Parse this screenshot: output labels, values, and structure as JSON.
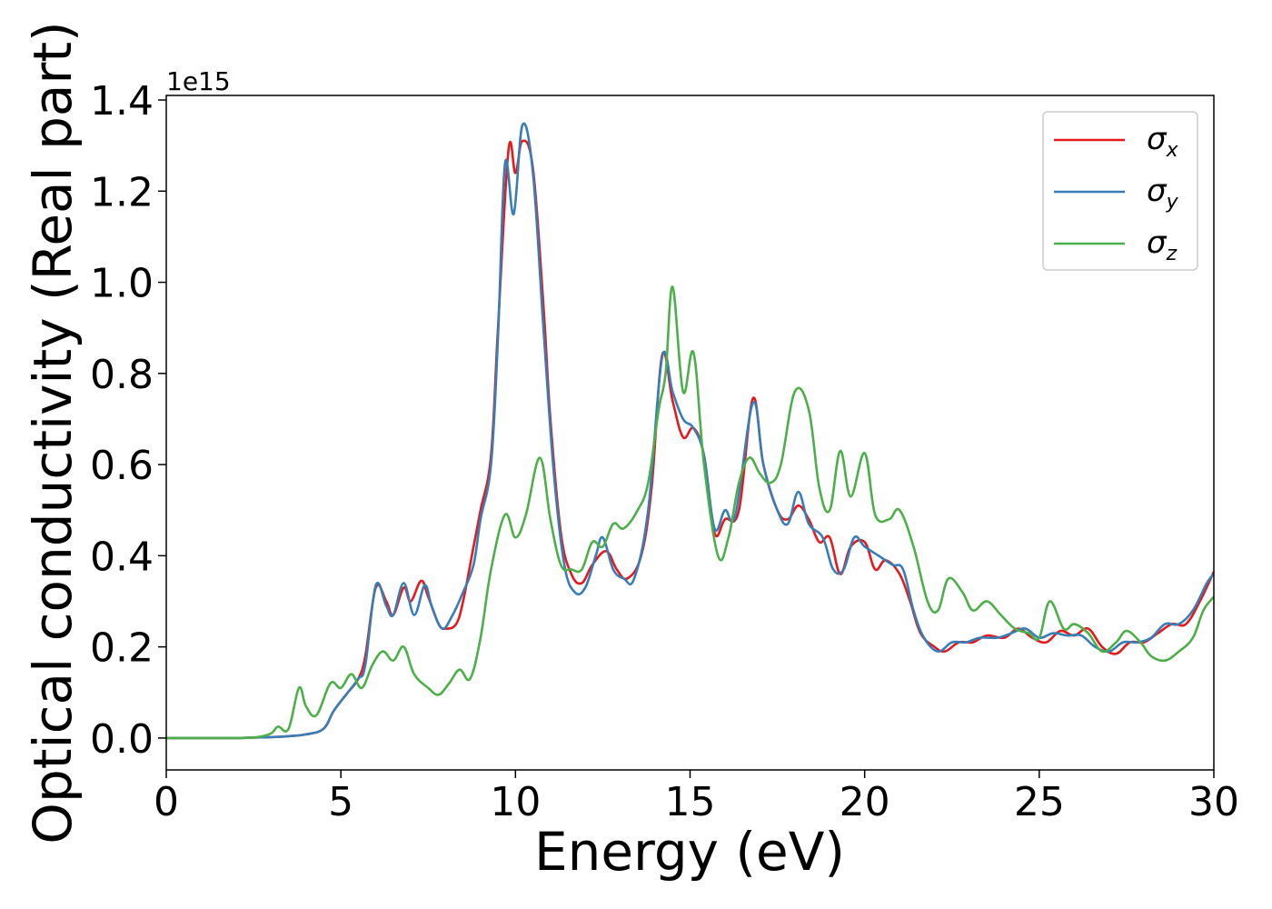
{
  "chart_data": {
    "type": "line",
    "xlabel": "Energy (eV)",
    "ylabel": "Optical conductivity (Real part)",
    "y_offset_label": "1e15",
    "xlim": [
      0,
      30
    ],
    "ylim": [
      -0.07,
      1.41
    ],
    "x_ticks": [
      0,
      5,
      10,
      15,
      20,
      25,
      30
    ],
    "y_ticks": [
      0.0,
      0.2,
      0.4,
      0.6,
      0.8,
      1.0,
      1.2,
      1.4
    ],
    "x_tick_labels": [
      "0",
      "5",
      "10",
      "15",
      "20",
      "25",
      "30"
    ],
    "y_tick_labels": [
      "0.0",
      "0.2",
      "0.4",
      "0.6",
      "0.8",
      "1.0",
      "1.2",
      "1.4"
    ],
    "grid": false,
    "legend_position": "top-right",
    "series": [
      {
        "name": "σx",
        "symbol": "σ",
        "sub": "x",
        "color": "#e41a1c",
        "points": [
          [
            0,
            0
          ],
          [
            1,
            0
          ],
          [
            2,
            0
          ],
          [
            2.5,
            0.001
          ],
          [
            3,
            0.002
          ],
          [
            3.5,
            0.004
          ],
          [
            4,
            0.008
          ],
          [
            4.5,
            0.02
          ],
          [
            4.8,
            0.06
          ],
          [
            5.2,
            0.1
          ],
          [
            5.5,
            0.13
          ],
          [
            5.7,
            0.18
          ],
          [
            6.0,
            0.33
          ],
          [
            6.3,
            0.3
          ],
          [
            6.5,
            0.27
          ],
          [
            6.8,
            0.33
          ],
          [
            7.0,
            0.3
          ],
          [
            7.3,
            0.345
          ],
          [
            7.5,
            0.31
          ],
          [
            7.8,
            0.25
          ],
          [
            8.0,
            0.24
          ],
          [
            8.3,
            0.25
          ],
          [
            8.5,
            0.3
          ],
          [
            8.8,
            0.42
          ],
          [
            9.0,
            0.5
          ],
          [
            9.3,
            0.62
          ],
          [
            9.5,
            0.9
          ],
          [
            9.8,
            1.29
          ],
          [
            10.0,
            1.24
          ],
          [
            10.2,
            1.31
          ],
          [
            10.5,
            1.25
          ],
          [
            10.8,
            0.95
          ],
          [
            11.0,
            0.7
          ],
          [
            11.3,
            0.45
          ],
          [
            11.6,
            0.36
          ],
          [
            11.9,
            0.34
          ],
          [
            12.2,
            0.38
          ],
          [
            12.6,
            0.41
          ],
          [
            12.9,
            0.37
          ],
          [
            13.2,
            0.35
          ],
          [
            13.6,
            0.4
          ],
          [
            13.9,
            0.55
          ],
          [
            14.2,
            0.84
          ],
          [
            14.5,
            0.74
          ],
          [
            14.8,
            0.66
          ],
          [
            15.1,
            0.68
          ],
          [
            15.4,
            0.62
          ],
          [
            15.7,
            0.45
          ],
          [
            16.0,
            0.48
          ],
          [
            16.4,
            0.5
          ],
          [
            16.8,
            0.745
          ],
          [
            17.1,
            0.6
          ],
          [
            17.5,
            0.5
          ],
          [
            17.8,
            0.48
          ],
          [
            18.1,
            0.51
          ],
          [
            18.4,
            0.48
          ],
          [
            18.7,
            0.43
          ],
          [
            19.0,
            0.44
          ],
          [
            19.3,
            0.36
          ],
          [
            19.6,
            0.42
          ],
          [
            20.0,
            0.43
          ],
          [
            20.3,
            0.37
          ],
          [
            20.6,
            0.39
          ],
          [
            21.0,
            0.36
          ],
          [
            21.3,
            0.3
          ],
          [
            21.6,
            0.23
          ],
          [
            22.0,
            0.2
          ],
          [
            22.3,
            0.19
          ],
          [
            22.7,
            0.21
          ],
          [
            23.1,
            0.21
          ],
          [
            23.5,
            0.225
          ],
          [
            24.0,
            0.22
          ],
          [
            24.4,
            0.24
          ],
          [
            24.8,
            0.22
          ],
          [
            25.2,
            0.21
          ],
          [
            25.6,
            0.235
          ],
          [
            26.0,
            0.225
          ],
          [
            26.4,
            0.24
          ],
          [
            26.8,
            0.2
          ],
          [
            27.2,
            0.185
          ],
          [
            27.6,
            0.21
          ],
          [
            28.0,
            0.21
          ],
          [
            28.4,
            0.23
          ],
          [
            28.8,
            0.25
          ],
          [
            29.2,
            0.25
          ],
          [
            29.6,
            0.3
          ],
          [
            30,
            0.365
          ]
        ]
      },
      {
        "name": "σy",
        "symbol": "σ",
        "sub": "y",
        "color": "#377eb8",
        "points": [
          [
            0,
            0
          ],
          [
            1,
            0
          ],
          [
            2,
            0
          ],
          [
            2.5,
            0.001
          ],
          [
            3,
            0.002
          ],
          [
            3.5,
            0.004
          ],
          [
            4,
            0.008
          ],
          [
            4.5,
            0.02
          ],
          [
            4.8,
            0.06
          ],
          [
            5.2,
            0.1
          ],
          [
            5.5,
            0.13
          ],
          [
            5.7,
            0.16
          ],
          [
            6.0,
            0.335
          ],
          [
            6.3,
            0.29
          ],
          [
            6.5,
            0.27
          ],
          [
            6.8,
            0.34
          ],
          [
            7.1,
            0.27
          ],
          [
            7.4,
            0.335
          ],
          [
            7.6,
            0.29
          ],
          [
            7.9,
            0.24
          ],
          [
            8.2,
            0.27
          ],
          [
            8.5,
            0.32
          ],
          [
            8.8,
            0.38
          ],
          [
            9.0,
            0.48
          ],
          [
            9.3,
            0.6
          ],
          [
            9.5,
            0.88
          ],
          [
            9.7,
            1.26
          ],
          [
            9.95,
            1.15
          ],
          [
            10.2,
            1.345
          ],
          [
            10.5,
            1.24
          ],
          [
            10.8,
            0.9
          ],
          [
            11.1,
            0.58
          ],
          [
            11.4,
            0.38
          ],
          [
            11.7,
            0.32
          ],
          [
            12.0,
            0.33
          ],
          [
            12.3,
            0.4
          ],
          [
            12.5,
            0.44
          ],
          [
            12.8,
            0.37
          ],
          [
            13.1,
            0.35
          ],
          [
            13.4,
            0.35
          ],
          [
            13.8,
            0.5
          ],
          [
            14.2,
            0.835
          ],
          [
            14.5,
            0.76
          ],
          [
            14.8,
            0.7
          ],
          [
            15.1,
            0.68
          ],
          [
            15.4,
            0.62
          ],
          [
            15.7,
            0.46
          ],
          [
            16.0,
            0.5
          ],
          [
            16.3,
            0.49
          ],
          [
            16.8,
            0.735
          ],
          [
            17.1,
            0.6
          ],
          [
            17.5,
            0.5
          ],
          [
            17.8,
            0.47
          ],
          [
            18.1,
            0.54
          ],
          [
            18.4,
            0.47
          ],
          [
            18.8,
            0.44
          ],
          [
            19.1,
            0.37
          ],
          [
            19.4,
            0.37
          ],
          [
            19.7,
            0.44
          ],
          [
            20.0,
            0.42
          ],
          [
            20.4,
            0.4
          ],
          [
            20.8,
            0.38
          ],
          [
            21.1,
            0.37
          ],
          [
            21.4,
            0.28
          ],
          [
            21.7,
            0.22
          ],
          [
            22.1,
            0.19
          ],
          [
            22.5,
            0.21
          ],
          [
            22.9,
            0.21
          ],
          [
            23.3,
            0.22
          ],
          [
            23.8,
            0.22
          ],
          [
            24.2,
            0.23
          ],
          [
            24.6,
            0.24
          ],
          [
            25.0,
            0.22
          ],
          [
            25.4,
            0.23
          ],
          [
            25.8,
            0.225
          ],
          [
            26.2,
            0.225
          ],
          [
            26.6,
            0.2
          ],
          [
            27.0,
            0.19
          ],
          [
            27.4,
            0.21
          ],
          [
            27.8,
            0.21
          ],
          [
            28.2,
            0.22
          ],
          [
            28.6,
            0.25
          ],
          [
            29.0,
            0.25
          ],
          [
            29.4,
            0.28
          ],
          [
            29.8,
            0.34
          ],
          [
            30,
            0.36
          ]
        ]
      },
      {
        "name": "σz",
        "symbol": "σ",
        "sub": "z",
        "color": "#4daf4a",
        "points": [
          [
            0,
            0
          ],
          [
            1,
            0
          ],
          [
            2,
            0
          ],
          [
            2.6,
            0.002
          ],
          [
            3.0,
            0.01
          ],
          [
            3.2,
            0.025
          ],
          [
            3.5,
            0.02
          ],
          [
            3.8,
            0.11
          ],
          [
            4.0,
            0.07
          ],
          [
            4.3,
            0.05
          ],
          [
            4.7,
            0.12
          ],
          [
            5.0,
            0.11
          ],
          [
            5.3,
            0.14
          ],
          [
            5.6,
            0.11
          ],
          [
            5.9,
            0.16
          ],
          [
            6.2,
            0.19
          ],
          [
            6.5,
            0.17
          ],
          [
            6.8,
            0.2
          ],
          [
            7.1,
            0.14
          ],
          [
            7.5,
            0.11
          ],
          [
            7.8,
            0.095
          ],
          [
            8.1,
            0.12
          ],
          [
            8.4,
            0.15
          ],
          [
            8.7,
            0.13
          ],
          [
            9.0,
            0.22
          ],
          [
            9.3,
            0.37
          ],
          [
            9.7,
            0.49
          ],
          [
            10.0,
            0.44
          ],
          [
            10.3,
            0.49
          ],
          [
            10.7,
            0.615
          ],
          [
            11.0,
            0.48
          ],
          [
            11.3,
            0.38
          ],
          [
            11.6,
            0.37
          ],
          [
            11.9,
            0.37
          ],
          [
            12.2,
            0.43
          ],
          [
            12.5,
            0.42
          ],
          [
            12.8,
            0.47
          ],
          [
            13.1,
            0.46
          ],
          [
            13.5,
            0.5
          ],
          [
            13.8,
            0.56
          ],
          [
            14.1,
            0.72
          ],
          [
            14.3,
            0.8
          ],
          [
            14.5,
            0.99
          ],
          [
            14.8,
            0.76
          ],
          [
            15.1,
            0.845
          ],
          [
            15.4,
            0.6
          ],
          [
            15.8,
            0.4
          ],
          [
            16.1,
            0.44
          ],
          [
            16.4,
            0.56
          ],
          [
            16.7,
            0.615
          ],
          [
            17.0,
            0.58
          ],
          [
            17.3,
            0.56
          ],
          [
            17.6,
            0.6
          ],
          [
            18.0,
            0.76
          ],
          [
            18.4,
            0.72
          ],
          [
            18.7,
            0.55
          ],
          [
            19.0,
            0.5
          ],
          [
            19.3,
            0.63
          ],
          [
            19.6,
            0.53
          ],
          [
            20.0,
            0.625
          ],
          [
            20.3,
            0.49
          ],
          [
            20.7,
            0.48
          ],
          [
            21.0,
            0.5
          ],
          [
            21.4,
            0.42
          ],
          [
            21.8,
            0.3
          ],
          [
            22.1,
            0.28
          ],
          [
            22.4,
            0.35
          ],
          [
            22.8,
            0.32
          ],
          [
            23.1,
            0.28
          ],
          [
            23.5,
            0.3
          ],
          [
            23.9,
            0.27
          ],
          [
            24.3,
            0.24
          ],
          [
            24.7,
            0.23
          ],
          [
            25.0,
            0.22
          ],
          [
            25.3,
            0.3
          ],
          [
            25.7,
            0.24
          ],
          [
            26.0,
            0.25
          ],
          [
            26.4,
            0.23
          ],
          [
            26.8,
            0.19
          ],
          [
            27.2,
            0.21
          ],
          [
            27.5,
            0.235
          ],
          [
            27.9,
            0.21
          ],
          [
            28.2,
            0.18
          ],
          [
            28.6,
            0.17
          ],
          [
            29.0,
            0.19
          ],
          [
            29.4,
            0.22
          ],
          [
            29.7,
            0.28
          ],
          [
            30,
            0.31
          ]
        ]
      }
    ]
  }
}
